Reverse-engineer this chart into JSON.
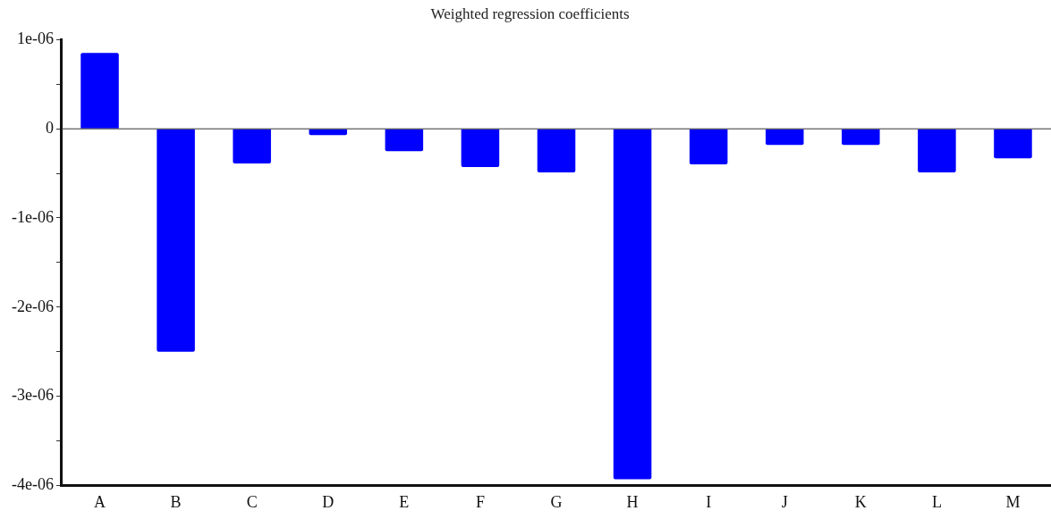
{
  "chart_data": {
    "type": "bar",
    "title": "Weighted regression coefficients",
    "categories": [
      "A",
      "B",
      "C",
      "D",
      "E",
      "F",
      "G",
      "H",
      "I",
      "J",
      "K",
      "L",
      "M"
    ],
    "values": [
      8.5e-07,
      -2.5e-06,
      -3.9e-07,
      -7e-08,
      -2.5e-07,
      -4.3e-07,
      -4.9e-07,
      -3.93e-06,
      -4e-07,
      -1.8e-07,
      -1.8e-07,
      -4.9e-07,
      -3.3e-07
    ],
    "color": "#0000ff",
    "ylim": [
      -4e-06,
      1e-06
    ],
    "yticks": [
      {
        "value": -4e-06,
        "label": "-4e-06"
      },
      {
        "value": -3.5e-06,
        "label": null
      },
      {
        "value": -3e-06,
        "label": "-3e-06"
      },
      {
        "value": -2.5e-06,
        "label": null
      },
      {
        "value": -2e-06,
        "label": "-2e-06"
      },
      {
        "value": -1.5e-06,
        "label": null
      },
      {
        "value": -1e-06,
        "label": "-1e-06"
      },
      {
        "value": -5e-07,
        "label": null
      },
      0,
      {
        "value": 5e-07,
        "label": null
      },
      {
        "value": 1e-06,
        "label": "1e-06"
      }
    ],
    "ref_lines": [
      {
        "axis": "y",
        "value": 0,
        "color": "#333333"
      }
    ],
    "grid": false
  }
}
